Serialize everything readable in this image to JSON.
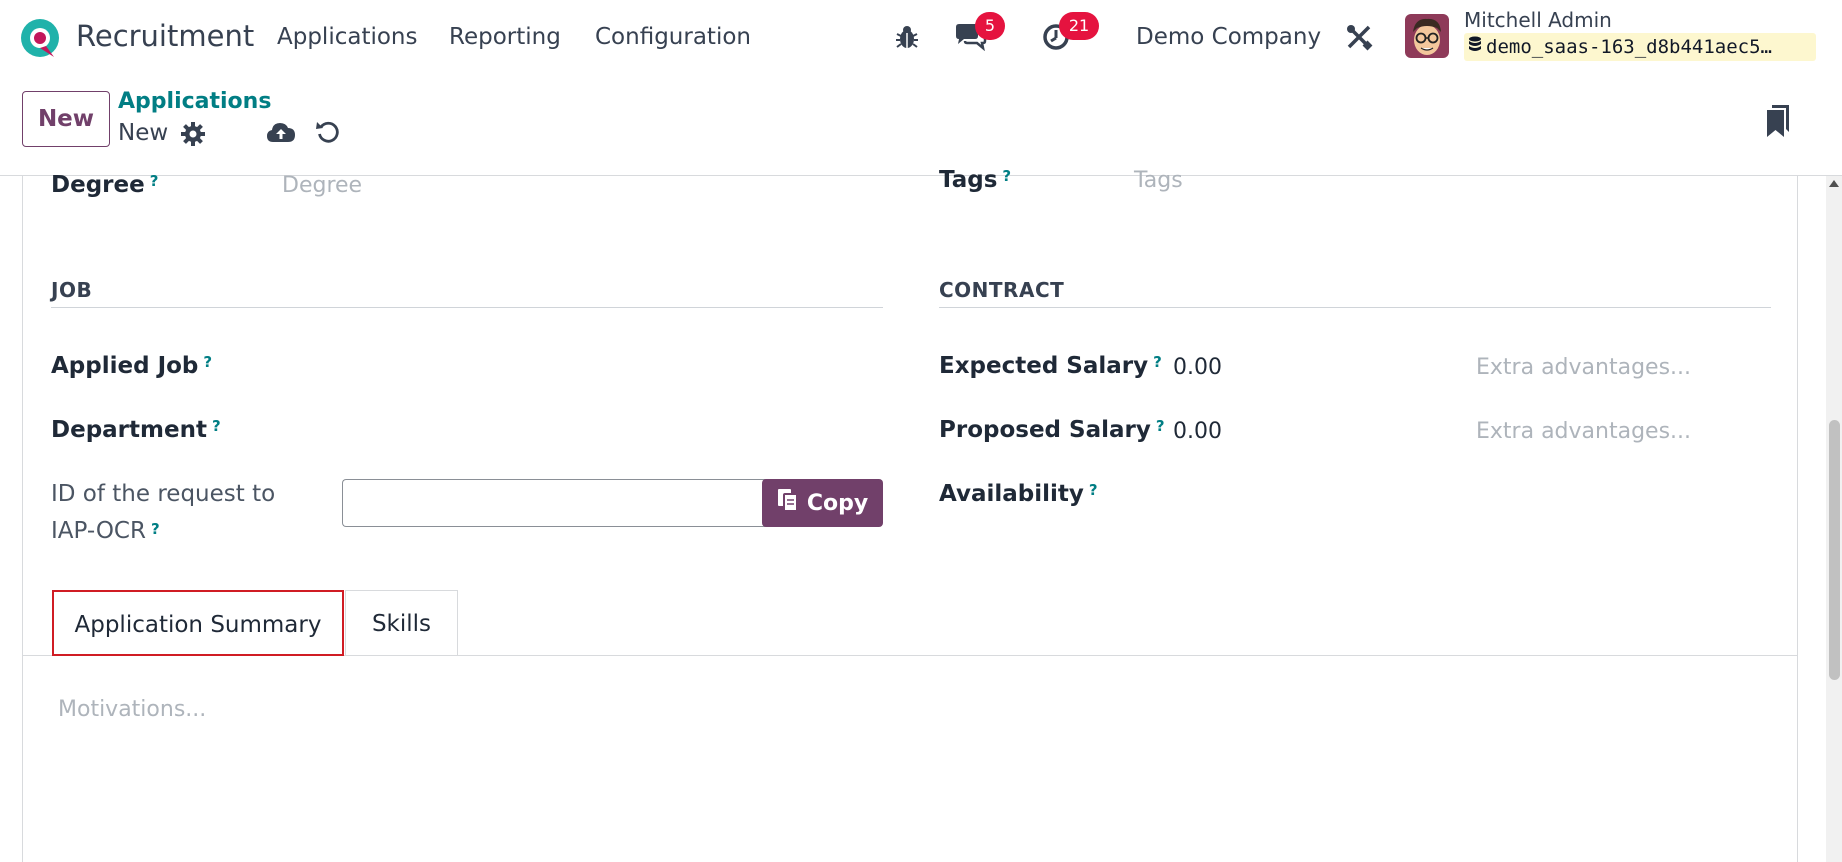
{
  "navbar": {
    "app_name": "Recruitment",
    "menu": [
      "Applications",
      "Reporting",
      "Configuration"
    ],
    "messages_count": "5",
    "activities_count": "21",
    "company": "Demo Company",
    "user_name": "Mitchell Admin",
    "database": "demo_saas-163_d8b441aec5…",
    "icons": [
      "bug-icon",
      "chat-icon",
      "clock-icon",
      "tools-icon",
      "database-icon"
    ]
  },
  "control_panel": {
    "new_button": "New",
    "breadcrumb": "Applications",
    "record_title": "New",
    "icons": [
      "gear-icon",
      "cloud-upload-icon",
      "undo-icon",
      "bookmark-icon"
    ]
  },
  "form": {
    "degree_label": "Degree",
    "degree_placeholder": "Degree",
    "tags_label": "Tags",
    "tags_placeholder": "Tags",
    "job_section": "JOB",
    "contract_section": "CONTRACT",
    "applied_job_label": "Applied Job",
    "department_label": "Department",
    "iap_label_line1": "ID of the request to",
    "iap_label_line2": "IAP-OCR",
    "copy_button": "Copy",
    "expected_salary_label": "Expected Salary",
    "expected_salary_value": "0.00",
    "expected_extra_placeholder": "Extra advantages...",
    "proposed_salary_label": "Proposed Salary",
    "proposed_salary_value": "0.00",
    "proposed_extra_placeholder": "Extra advantages...",
    "availability_label": "Availability",
    "help_mark": "?"
  },
  "tabs": {
    "summary": "Application Summary",
    "skills": "Skills",
    "active": "Application Summary"
  },
  "summary": {
    "motivations_placeholder": "Motivations..."
  },
  "colors": {
    "brand": "#71406a",
    "link": "#017e84",
    "badge": "#e5133f",
    "tab_highlight": "#d01c24"
  }
}
